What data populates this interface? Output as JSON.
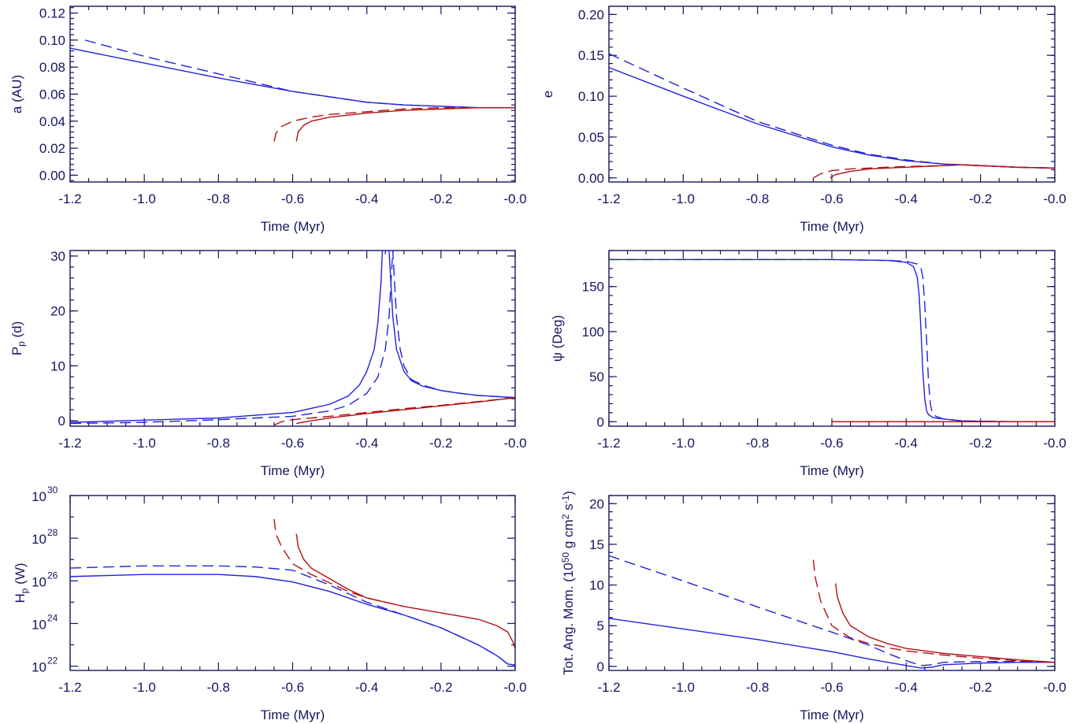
{
  "colors": {
    "axis": "#151560",
    "planet": "#2222dd",
    "star": "#b01010"
  },
  "chart_data": [
    {
      "id": "a",
      "type": "line",
      "ylabel": "a (AU)",
      "xlabel": "Time (Myr)",
      "xlim": [
        -1.2,
        0.0
      ],
      "ylim": [
        -0.005,
        0.125
      ],
      "xticks": [
        -1.2,
        -1.0,
        -0.8,
        -0.6,
        -0.4,
        -0.2,
        -0.0
      ],
      "xtick_labels": [
        "-1.2",
        "-1.0",
        "-0.8",
        "-0.6",
        "-0.4",
        "-0.2",
        "-0.0"
      ],
      "yticks": [
        0.0,
        0.02,
        0.04,
        0.06,
        0.08,
        0.1,
        0.12
      ],
      "ytick_labels": [
        "0.00",
        "0.02",
        "0.04",
        "0.06",
        "0.08",
        "0.10",
        "0.12"
      ],
      "series": [
        {
          "color": "blue",
          "dash": false,
          "x": [
            -1.2,
            -1.0,
            -0.8,
            -0.6,
            -0.5,
            -0.4,
            -0.3,
            -0.2,
            -0.1,
            0.0
          ],
          "y": [
            0.094,
            0.083,
            0.072,
            0.062,
            0.058,
            0.054,
            0.052,
            0.051,
            0.05,
            0.05
          ]
        },
        {
          "color": "blue",
          "dash": true,
          "x": [
            -1.16,
            -1.0,
            -0.8,
            -0.6,
            -0.5,
            -0.4,
            -0.3,
            -0.2,
            -0.1,
            0.0
          ],
          "y": [
            0.1,
            0.088,
            0.075,
            0.062,
            0.058,
            0.054,
            0.052,
            0.051,
            0.05,
            0.05
          ]
        },
        {
          "color": "red",
          "dash": false,
          "x": [
            -0.59,
            -0.585,
            -0.57,
            -0.55,
            -0.5,
            -0.4,
            -0.3,
            -0.2,
            -0.1,
            0.0
          ],
          "y": [
            0.025,
            0.032,
            0.037,
            0.04,
            0.043,
            0.046,
            0.048,
            0.049,
            0.05,
            0.05
          ]
        },
        {
          "color": "red",
          "dash": true,
          "x": [
            -0.65,
            -0.645,
            -0.63,
            -0.6,
            -0.55,
            -0.5,
            -0.4,
            -0.3,
            -0.2,
            0.0
          ],
          "y": [
            0.025,
            0.031,
            0.036,
            0.04,
            0.043,
            0.045,
            0.047,
            0.049,
            0.05,
            0.05
          ]
        }
      ]
    },
    {
      "id": "e",
      "type": "line",
      "ylabel": "e",
      "xlabel": "Time (Myr)",
      "xlim": [
        -1.2,
        0.0
      ],
      "ylim": [
        -0.005,
        0.21
      ],
      "xticks": [
        -1.2,
        -1.0,
        -0.8,
        -0.6,
        -0.4,
        -0.2,
        -0.0
      ],
      "xtick_labels": [
        "-1.2",
        "-1.0",
        "-0.8",
        "-0.6",
        "-0.4",
        "-0.2",
        "-0.0"
      ],
      "yticks": [
        0.0,
        0.05,
        0.1,
        0.15,
        0.2
      ],
      "ytick_labels": [
        "0.00",
        "0.05",
        "0.10",
        "0.15",
        "0.20"
      ],
      "series": [
        {
          "color": "blue",
          "dash": false,
          "x": [
            -1.2,
            -1.0,
            -0.8,
            -0.6,
            -0.5,
            -0.4,
            -0.3,
            -0.2,
            -0.1,
            0.0
          ],
          "y": [
            0.135,
            0.1,
            0.066,
            0.038,
            0.028,
            0.021,
            0.017,
            0.015,
            0.013,
            0.012
          ]
        },
        {
          "color": "blue",
          "dash": true,
          "x": [
            -1.2,
            -1.0,
            -0.8,
            -0.6,
            -0.5,
            -0.4,
            -0.3,
            -0.2,
            -0.1,
            0.0
          ],
          "y": [
            0.152,
            0.11,
            0.069,
            0.04,
            0.029,
            0.022,
            0.017,
            0.015,
            0.013,
            0.012
          ]
        },
        {
          "color": "red",
          "dash": false,
          "x": [
            -0.605,
            -0.59,
            -0.55,
            -0.5,
            -0.4,
            -0.3,
            -0.25,
            -0.2,
            -0.1,
            0.0
          ],
          "y": [
            0.0,
            0.004,
            0.008,
            0.011,
            0.013,
            0.015,
            0.016,
            0.015,
            0.013,
            0.012
          ]
        },
        {
          "color": "red",
          "dash": true,
          "x": [
            -0.65,
            -0.63,
            -0.6,
            -0.55,
            -0.5,
            -0.4,
            -0.3,
            -0.25,
            -0.1,
            0.0
          ],
          "y": [
            0.0,
            0.005,
            0.009,
            0.011,
            0.012,
            0.014,
            0.015,
            0.016,
            0.013,
            0.012
          ]
        }
      ]
    },
    {
      "id": "Pp",
      "type": "line",
      "ylabel": "P",
      "ylabel_sub": "p",
      "ylabel_tail": " (d)",
      "xlabel": "Time (Myr)",
      "xlim": [
        -1.2,
        0.0
      ],
      "ylim": [
        -1.0,
        31.0
      ],
      "xticks": [
        -1.2,
        -1.0,
        -0.8,
        -0.6,
        -0.4,
        -0.2,
        -0.0
      ],
      "xtick_labels": [
        "-1.2",
        "-1.0",
        "-0.8",
        "-0.6",
        "-0.4",
        "-0.2",
        "-0.0"
      ],
      "yticks": [
        0,
        10,
        20,
        30
      ],
      "ytick_labels": [
        "0",
        "10",
        "20",
        "30"
      ],
      "series": [
        {
          "color": "blue",
          "dash": false,
          "x": [
            -1.2,
            -1.0,
            -0.8,
            -0.6,
            -0.5,
            -0.45,
            -0.42,
            -0.4,
            -0.38,
            -0.37,
            -0.362,
            -0.358,
            -0.35,
            -0.345,
            -0.34,
            -0.335,
            -0.33,
            -0.32,
            -0.3,
            -0.28,
            -0.25,
            -0.2,
            -0.15,
            -0.1,
            0.0
          ],
          "y": [
            -0.3,
            0.1,
            0.5,
            1.5,
            3.0,
            4.5,
            6.5,
            9.0,
            13.0,
            18.0,
            25.0,
            31.0,
            31.0,
            31.0,
            31.0,
            25.0,
            19.0,
            13.0,
            9.0,
            7.3,
            6.3,
            5.5,
            5.0,
            4.6,
            4.2
          ]
        },
        {
          "color": "blue",
          "dash": true,
          "x": [
            -1.2,
            -1.0,
            -0.8,
            -0.6,
            -0.5,
            -0.45,
            -0.4,
            -0.37,
            -0.35,
            -0.34,
            -0.335,
            -0.33,
            -0.325,
            -0.32,
            -0.31,
            -0.3,
            -0.28,
            -0.25,
            -0.2,
            -0.15,
            -0.1,
            0.0
          ],
          "y": [
            -0.5,
            -0.3,
            0.2,
            0.8,
            1.8,
            2.8,
            5.0,
            8.0,
            13.0,
            19.0,
            25.0,
            31.0,
            25.0,
            19.0,
            13.0,
            10.0,
            7.5,
            6.5,
            5.5,
            5.0,
            4.6,
            4.2
          ]
        },
        {
          "color": "red",
          "dash": false,
          "x": [
            -0.59,
            -0.55,
            -0.5,
            -0.4,
            -0.3,
            -0.2,
            -0.1,
            0.0
          ],
          "y": [
            -0.5,
            0.0,
            0.5,
            1.3,
            2.0,
            2.7,
            3.4,
            4.2
          ]
        },
        {
          "color": "red",
          "dash": true,
          "x": [
            -0.65,
            -0.63,
            -0.6,
            -0.5,
            -0.4,
            -0.3,
            -0.2,
            -0.1,
            0.0
          ],
          "y": [
            -0.8,
            -0.2,
            0.2,
            0.8,
            1.5,
            2.2,
            2.8,
            3.5,
            4.2
          ]
        }
      ]
    },
    {
      "id": "psi",
      "type": "line",
      "ylabel": "ψ (Deg)",
      "xlabel": "Time (Myr)",
      "xlim": [
        -1.2,
        0.0
      ],
      "ylim": [
        -5,
        190
      ],
      "xticks": [
        -1.2,
        -1.0,
        -0.8,
        -0.6,
        -0.4,
        -0.2,
        -0.0
      ],
      "xtick_labels": [
        "-1.2",
        "-1.0",
        "-0.8",
        "-0.6",
        "-0.4",
        "-0.2",
        "-0.0"
      ],
      "yticks": [
        0,
        50,
        100,
        150
      ],
      "ytick_labels": [
        "0",
        "50",
        "100",
        "150"
      ],
      "series": [
        {
          "color": "blue",
          "dash": false,
          "x": [
            -1.2,
            -1.0,
            -0.8,
            -0.6,
            -0.45,
            -0.4,
            -0.38,
            -0.37,
            -0.365,
            -0.36,
            -0.355,
            -0.35,
            -0.345,
            -0.34,
            -0.33,
            -0.32,
            -0.3,
            -0.25,
            -0.2,
            -0.1,
            0.0
          ],
          "y": [
            180,
            180,
            180,
            180,
            179,
            177,
            172,
            160,
            140,
            100,
            55,
            25,
            12,
            8,
            5,
            4,
            3,
            1,
            0.5,
            0,
            0
          ]
        },
        {
          "color": "blue",
          "dash": true,
          "x": [
            -1.2,
            -1.0,
            -0.8,
            -0.6,
            -0.45,
            -0.4,
            -0.37,
            -0.36,
            -0.355,
            -0.35,
            -0.345,
            -0.34,
            -0.335,
            -0.33,
            -0.32,
            -0.3,
            -0.25,
            -0.2,
            -0.1,
            0.0
          ],
          "y": [
            180,
            180,
            180,
            180,
            179,
            178,
            175,
            170,
            160,
            130,
            90,
            45,
            20,
            10,
            6,
            3,
            1,
            0.5,
            0,
            0
          ]
        },
        {
          "color": "red",
          "dash": false,
          "x": [
            -0.6,
            -0.4,
            -0.2,
            0.0
          ],
          "y": [
            0,
            0,
            0,
            0
          ]
        },
        {
          "color": "red",
          "dash": true,
          "x": [
            -0.6,
            -0.4,
            -0.2,
            0.0
          ],
          "y": [
            0,
            0,
            0,
            0
          ]
        }
      ]
    },
    {
      "id": "Hp",
      "type": "line",
      "log_y": true,
      "ylabel": "H",
      "ylabel_sub": "p",
      "ylabel_tail": " (W)",
      "xlabel": "Time (Myr)",
      "xlim": [
        -1.2,
        0.0
      ],
      "ylim_exp": [
        21.8,
        30.0
      ],
      "xticks": [
        -1.2,
        -1.0,
        -0.8,
        -0.6,
        -0.4,
        -0.2,
        -0.0
      ],
      "xtick_labels": [
        "-1.2",
        "-1.0",
        "-0.8",
        "-0.6",
        "-0.4",
        "-0.2",
        "-0.0"
      ],
      "yticks": [
        22,
        24,
        26,
        28,
        30
      ],
      "ytick_base": "10",
      "ytick_exps": [
        "22",
        "24",
        "26",
        "28",
        "30"
      ],
      "series": [
        {
          "color": "blue",
          "dash": false,
          "x": [
            -1.2,
            -1.0,
            -0.8,
            -0.7,
            -0.6,
            -0.5,
            -0.4,
            -0.3,
            -0.2,
            -0.1,
            -0.05,
            -0.02,
            0.0
          ],
          "y_exp": [
            26.2,
            26.3,
            26.3,
            26.2,
            25.95,
            25.5,
            24.9,
            24.4,
            23.8,
            23.0,
            22.5,
            22.1,
            22.05
          ]
        },
        {
          "color": "blue",
          "dash": true,
          "x": [
            -1.2,
            -1.0,
            -0.8,
            -0.7,
            -0.6,
            -0.5,
            -0.4,
            -0.3,
            -0.2,
            -0.1,
            -0.05,
            -0.02,
            0.0
          ],
          "y_exp": [
            26.6,
            26.7,
            26.7,
            26.65,
            26.5,
            25.8,
            25.0,
            24.4,
            23.8,
            23.0,
            22.5,
            22.1,
            22.05
          ]
        },
        {
          "color": "red",
          "dash": false,
          "x": [
            -0.59,
            -0.585,
            -0.57,
            -0.55,
            -0.5,
            -0.45,
            -0.4,
            -0.3,
            -0.2,
            -0.1,
            -0.05,
            -0.02,
            -0.005,
            0.0
          ],
          "y_exp": [
            28.2,
            27.6,
            27.0,
            26.6,
            26.1,
            25.6,
            25.2,
            24.8,
            24.5,
            24.2,
            23.9,
            23.6,
            23.1,
            22.8
          ]
        },
        {
          "color": "red",
          "dash": true,
          "x": [
            -0.65,
            -0.645,
            -0.63,
            -0.6,
            -0.55,
            -0.5,
            -0.45,
            -0.4,
            -0.3
          ],
          "y_exp": [
            28.9,
            28.2,
            27.6,
            26.8,
            26.3,
            25.9,
            25.5,
            25.2,
            24.8
          ]
        }
      ]
    },
    {
      "id": "L",
      "type": "line",
      "ylabel": "Tot. Ang. Mom. (10",
      "ylabel_exp": "50",
      "ylabel_mid": " g cm",
      "ylabel_exp2": "2",
      "ylabel_mid2": " s",
      "ylabel_exp3": "-1",
      "ylabel_end": ")",
      "xlabel": "Time (Myr)",
      "xlim": [
        -1.2,
        0.0
      ],
      "ylim": [
        -0.5,
        21.0
      ],
      "xticks": [
        -1.2,
        -1.0,
        -0.8,
        -0.6,
        -0.4,
        -0.2,
        -0.0
      ],
      "xtick_labels": [
        "-1.2",
        "-1.0",
        "-0.8",
        "-0.6",
        "-0.4",
        "-0.2",
        "-0.0"
      ],
      "yticks": [
        0,
        5,
        10,
        15,
        20
      ],
      "ytick_labels": [
        "0",
        "5",
        "10",
        "15",
        "20"
      ],
      "series": [
        {
          "color": "blue",
          "dash": false,
          "x": [
            -1.2,
            -1.0,
            -0.8,
            -0.6,
            -0.5,
            -0.4,
            -0.36,
            -0.33,
            -0.3,
            -0.2,
            -0.1,
            0.0
          ],
          "y": [
            5.9,
            4.6,
            3.3,
            1.8,
            0.9,
            0.1,
            -0.2,
            -0.1,
            0.2,
            0.4,
            0.5,
            0.5
          ]
        },
        {
          "color": "blue",
          "dash": true,
          "x": [
            -1.2,
            -1.0,
            -0.8,
            -0.6,
            -0.5,
            -0.45,
            -0.4,
            -0.36,
            -0.33,
            -0.3,
            -0.2,
            -0.1,
            0.0
          ],
          "y": [
            13.6,
            10.5,
            7.3,
            4.2,
            2.6,
            1.6,
            0.7,
            0.1,
            0.2,
            0.5,
            0.6,
            0.6,
            0.5
          ]
        },
        {
          "color": "red",
          "dash": false,
          "x": [
            -0.59,
            -0.585,
            -0.57,
            -0.55,
            -0.5,
            -0.45,
            -0.4,
            -0.3,
            -0.2,
            -0.1,
            0.0
          ],
          "y": [
            10.2,
            8.5,
            6.5,
            5.0,
            3.6,
            2.8,
            2.2,
            1.6,
            1.2,
            0.8,
            0.5
          ]
        },
        {
          "color": "red",
          "dash": true,
          "x": [
            -0.65,
            -0.645,
            -0.63,
            -0.6,
            -0.55,
            -0.5,
            -0.45,
            -0.4,
            -0.3,
            -0.2,
            -0.1,
            0.0
          ],
          "y": [
            13.1,
            11.0,
            8.0,
            5.0,
            3.5,
            2.8,
            2.3,
            1.9,
            1.4,
            1.0,
            0.7,
            0.5
          ]
        }
      ]
    }
  ]
}
